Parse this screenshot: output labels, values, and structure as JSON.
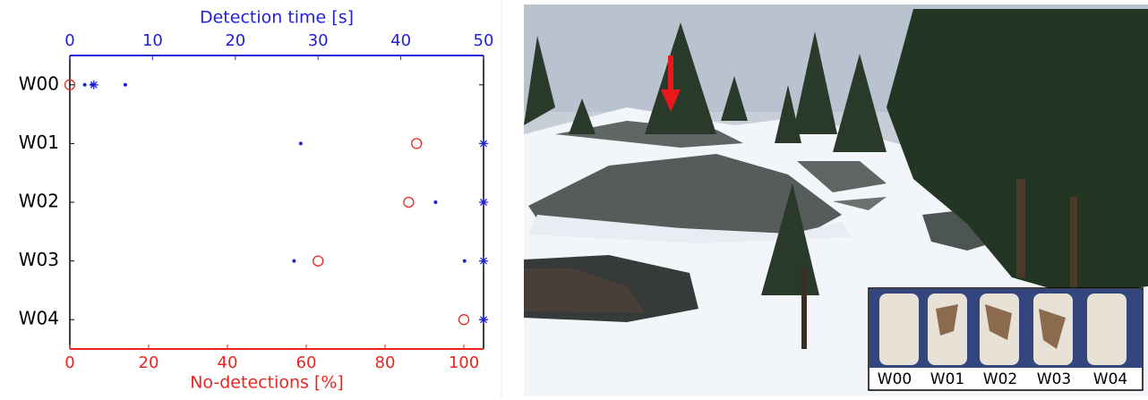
{
  "chart_data": {
    "type": "scatter",
    "x_top_label": "Detection time [s]",
    "x_top_color": "#1f1fd8",
    "x_bottom_label": "No-detections [%]",
    "x_bottom_color": "#e8251f",
    "categories": [
      "W00",
      "W01",
      "W02",
      "W03",
      "W04"
    ],
    "x_toplim": [
      0,
      50
    ],
    "x_topticks": [
      0,
      10,
      20,
      30,
      40,
      50
    ],
    "xlim": [
      0,
      105
    ],
    "xticks": [
      0,
      20,
      40,
      60,
      80,
      100
    ],
    "no_detections": {
      "color": "#e8251f",
      "values": [
        0,
        88,
        86,
        63,
        100
      ]
    },
    "detection_times": {
      "color": "#1f1fd8",
      "values": [
        [
          1.8,
          2.7,
          6.7
        ],
        [
          27.9
        ],
        [
          44.2
        ],
        [
          27.1,
          47.7
        ],
        []
      ]
    },
    "detection_stars": {
      "color": "#1f1fd8",
      "values": [
        2.9,
        50,
        50,
        50,
        50
      ]
    }
  },
  "photo": {
    "inset_labels": [
      "W00",
      "W01",
      "W02",
      "W03",
      "W04"
    ]
  }
}
